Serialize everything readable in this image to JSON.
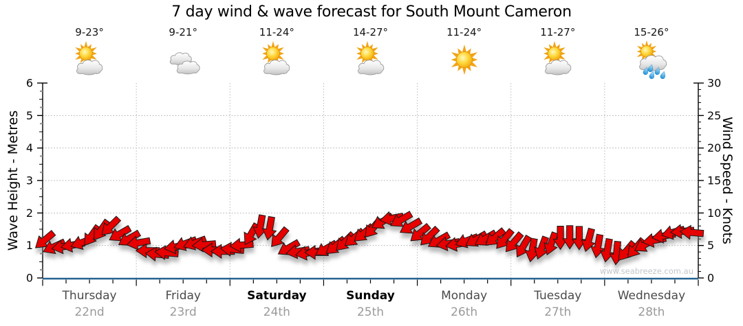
{
  "title": "7 day wind & wave forecast for South Mount Cameron",
  "watermark": "www.seabreeze.com.au",
  "days": [
    {
      "name": "Thursday",
      "date": "22nd",
      "temps": "9-23°",
      "icon": "partly-cloudy",
      "weekend": false
    },
    {
      "name": "Friday",
      "date": "23rd",
      "temps": "9-21°",
      "icon": "cloudy",
      "weekend": false
    },
    {
      "name": "Saturday",
      "date": "24th",
      "temps": "11-24°",
      "icon": "partly-cloudy",
      "weekend": true
    },
    {
      "name": "Sunday",
      "date": "25th",
      "temps": "14-27°",
      "icon": "partly-cloudy",
      "weekend": true
    },
    {
      "name": "Monday",
      "date": "26th",
      "temps": "11-24°",
      "icon": "sunny",
      "weekend": false
    },
    {
      "name": "Tuesday",
      "date": "27th",
      "temps": "11-27°",
      "icon": "partly-cloudy",
      "weekend": false
    },
    {
      "name": "Wednesday",
      "date": "28th",
      "temps": "15-26°",
      "icon": "showers",
      "weekend": false
    }
  ],
  "chart_data": {
    "type": "wind-forecast-arrow-band",
    "title": "7 day wind & wave forecast for South Mount Cameron",
    "left_axis": {
      "label": "Wave Height - Metres",
      "min": 0,
      "max": 6,
      "major_step": 1
    },
    "right_axis": {
      "label": "Wind Speed - Knots",
      "min": 0,
      "max": 30,
      "major_step": 5
    },
    "x_axis": {
      "days": 7,
      "categories": [
        "Thursday 22nd",
        "Friday 23rd",
        "Saturday 24th",
        "Sunday 25th",
        "Monday 26th",
        "Tuesday 27th",
        "Wednesday 28th"
      ]
    },
    "grid": "dotted",
    "legend": "none",
    "colors": {
      "arrow_fill": "#e60000",
      "arrow_outline": "#1a1a1a",
      "x_axis_line": "#22628f",
      "gridline": "#ababab",
      "axis": "#000000",
      "minor_tick_gray": "#8c8c8c"
    },
    "wind_samples_note": "t = days from Thursday 00:00 (0-7), kn = wind speed knots, dir = on-screen arrow heading in degrees (0=right/E, 90=down/S)",
    "wind_samples": [
      {
        "t": 0.0,
        "kn": 6.0,
        "dir": 140
      },
      {
        "t": 0.13,
        "kn": 4.7,
        "dir": 155
      },
      {
        "t": 0.28,
        "kn": 4.9,
        "dir": 170
      },
      {
        "t": 0.43,
        "kn": 5.5,
        "dir": 160
      },
      {
        "t": 0.57,
        "kn": 7.0,
        "dir": 125
      },
      {
        "t": 0.72,
        "kn": 7.9,
        "dir": 135
      },
      {
        "t": 0.87,
        "kn": 6.2,
        "dir": 150
      },
      {
        "t": 0.99,
        "kn": 5.8,
        "dir": 170
      },
      {
        "t": 1.12,
        "kn": 4.2,
        "dir": 180
      },
      {
        "t": 1.27,
        "kn": 3.4,
        "dir": 185
      },
      {
        "t": 1.42,
        "kn": 4.8,
        "dir": 170
      },
      {
        "t": 1.57,
        "kn": 5.5,
        "dir": 160
      },
      {
        "t": 1.71,
        "kn": 5.2,
        "dir": 175
      },
      {
        "t": 1.86,
        "kn": 4.0,
        "dir": 180
      },
      {
        "t": 1.99,
        "kn": 4.2,
        "dir": 185
      },
      {
        "t": 2.12,
        "kn": 5.0,
        "dir": 175
      },
      {
        "t": 2.26,
        "kn": 7.3,
        "dir": 120
      },
      {
        "t": 2.37,
        "kn": 8.3,
        "dir": 100
      },
      {
        "t": 2.48,
        "kn": 6.9,
        "dir": 130
      },
      {
        "t": 2.63,
        "kn": 4.5,
        "dir": 150
      },
      {
        "t": 2.78,
        "kn": 3.8,
        "dir": 170
      },
      {
        "t": 2.92,
        "kn": 3.9,
        "dir": 180
      },
      {
        "t": 2.98,
        "kn": 4.3,
        "dir": 150
      },
      {
        "t": 3.11,
        "kn": 4.8,
        "dir": 140
      },
      {
        "t": 3.22,
        "kn": 5.5,
        "dir": 135
      },
      {
        "t": 3.37,
        "kn": 6.4,
        "dir": 140
      },
      {
        "t": 3.51,
        "kn": 7.5,
        "dir": 130
      },
      {
        "t": 3.66,
        "kn": 9.0,
        "dir": 150
      },
      {
        "t": 3.77,
        "kn": 9.3,
        "dir": 170
      },
      {
        "t": 3.88,
        "kn": 8.6,
        "dir": 150
      },
      {
        "t": 3.98,
        "kn": 7.1,
        "dir": 140
      },
      {
        "t": 4.1,
        "kn": 6.5,
        "dir": 135
      },
      {
        "t": 4.25,
        "kn": 5.6,
        "dir": 150
      },
      {
        "t": 4.39,
        "kn": 5.0,
        "dir": 170
      },
      {
        "t": 4.54,
        "kn": 5.8,
        "dir": 160
      },
      {
        "t": 4.69,
        "kn": 6.0,
        "dir": 150
      },
      {
        "t": 4.83,
        "kn": 6.2,
        "dir": 140
      },
      {
        "t": 4.97,
        "kn": 5.8,
        "dir": 130
      },
      {
        "t": 5.09,
        "kn": 5.0,
        "dir": 120
      },
      {
        "t": 5.24,
        "kn": 4.2,
        "dir": 100
      },
      {
        "t": 5.39,
        "kn": 4.9,
        "dir": 110
      },
      {
        "t": 5.53,
        "kn": 6.2,
        "dir": 90
      },
      {
        "t": 5.68,
        "kn": 6.3,
        "dir": 90
      },
      {
        "t": 5.83,
        "kn": 5.8,
        "dir": 105
      },
      {
        "t": 5.97,
        "kn": 4.5,
        "dir": 100
      },
      {
        "t": 6.12,
        "kn": 3.8,
        "dir": 95
      },
      {
        "t": 6.27,
        "kn": 4.2,
        "dir": 130
      },
      {
        "t": 6.41,
        "kn": 5.0,
        "dir": 150
      },
      {
        "t": 6.56,
        "kn": 6.0,
        "dir": 170
      },
      {
        "t": 6.71,
        "kn": 7.0,
        "dir": 165
      },
      {
        "t": 6.85,
        "kn": 7.2,
        "dir": 175
      },
      {
        "t": 6.93,
        "kn": 7.0,
        "dir": 185
      }
    ]
  }
}
